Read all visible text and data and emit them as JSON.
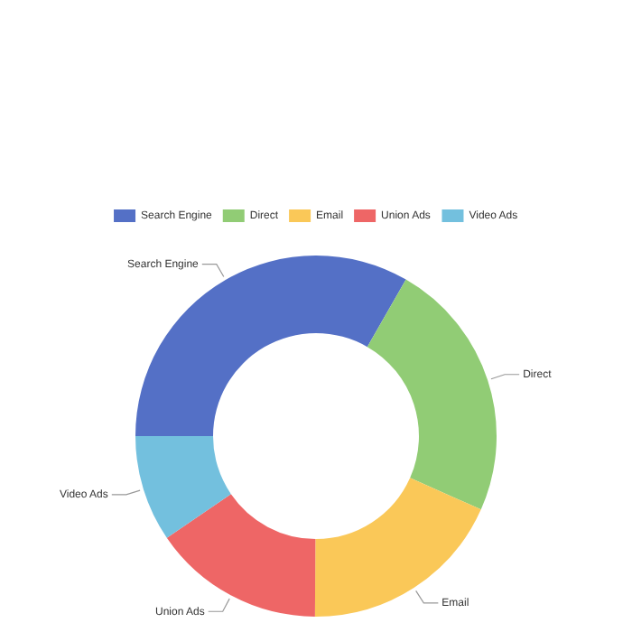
{
  "chart_data": {
    "type": "donut",
    "categories": [
      "Search Engine",
      "Direct",
      "Email",
      "Union Ads",
      "Video Ads"
    ],
    "values": [
      33.3,
      23.36,
      18.43,
      15.38,
      9.53
    ],
    "colors": [
      "#5470c6",
      "#91cc75",
      "#fac858",
      "#ee6666",
      "#73c0de"
    ],
    "legend": "top"
  }
}
